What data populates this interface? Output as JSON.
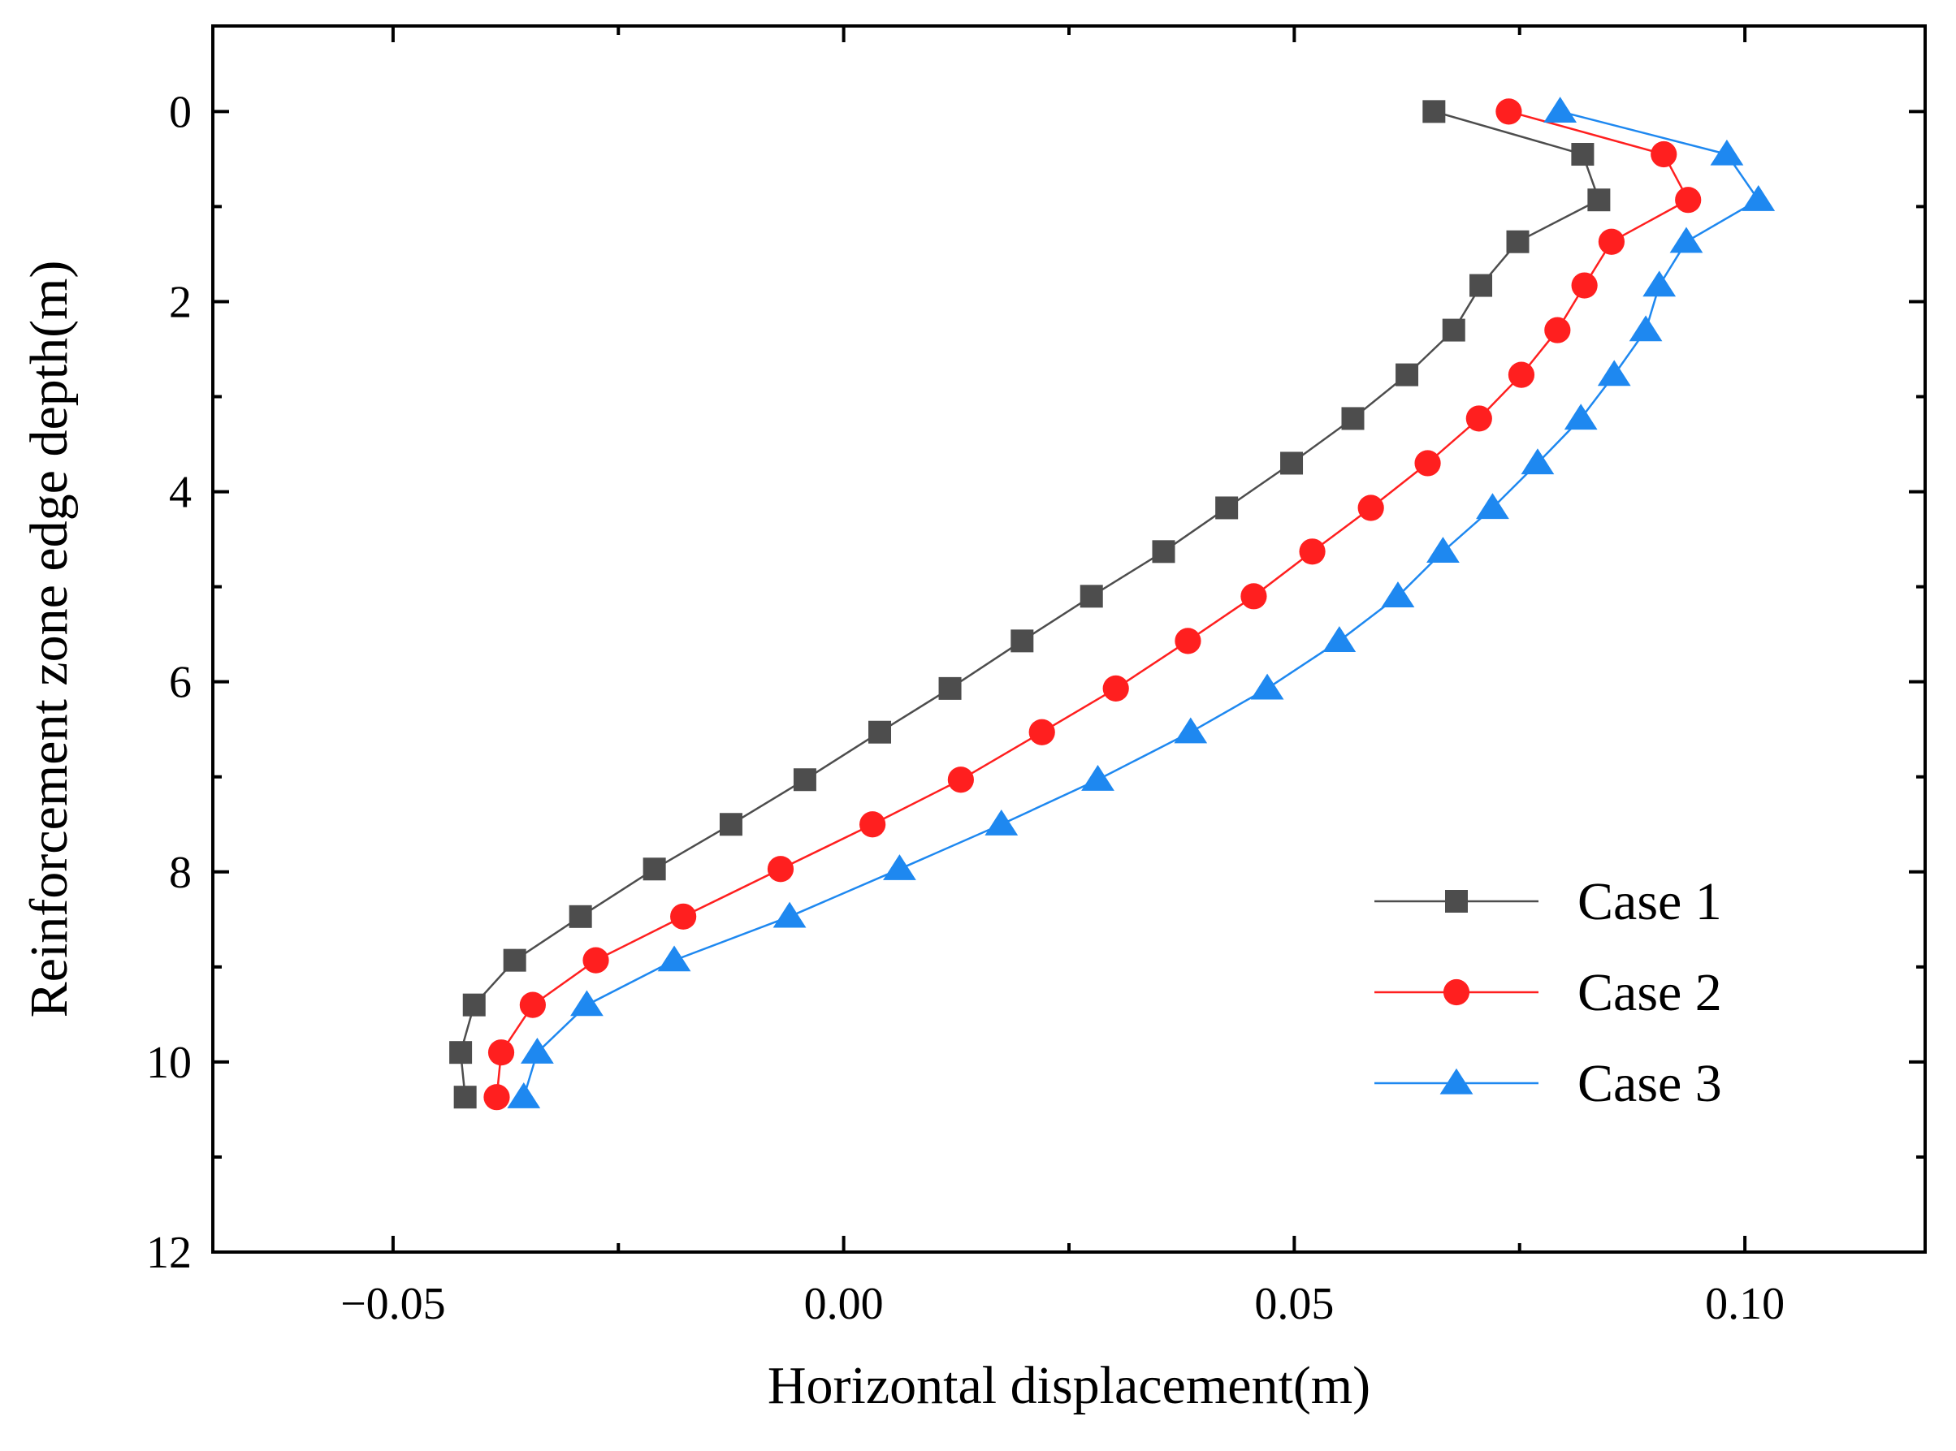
{
  "chart_data": {
    "type": "line",
    "title": "",
    "xlabel": "Horizontal displacement(m)",
    "ylabel": "Reinforcement zone edge depth(m)",
    "xlim": [
      -0.07,
      0.12
    ],
    "ylim": [
      12,
      -0.9
    ],
    "x_ticks": [
      -0.05,
      0.0,
      0.05,
      0.1
    ],
    "x_tick_labels": [
      "−0.05",
      "0.00",
      "0.05",
      "0.10"
    ],
    "y_ticks": [
      0,
      2,
      4,
      6,
      8,
      10,
      12
    ],
    "y_tick_labels": [
      "0",
      "2",
      "4",
      "6",
      "8",
      "10",
      "12"
    ],
    "grid": false,
    "legend_position": "bottom-right",
    "series": [
      {
        "name": "Case 1",
        "color": "#4d4d4d",
        "marker": "square",
        "x": [
          0.0655,
          0.082,
          0.0838,
          0.0748,
          0.0707,
          0.0677,
          0.0625,
          0.0565,
          0.0497,
          0.0425,
          0.0355,
          0.0275,
          0.0198,
          0.0118,
          0.004,
          -0.0043,
          -0.0125,
          -0.021,
          -0.0292,
          -0.0365,
          -0.041,
          -0.0425,
          -0.042
        ],
        "y": [
          0,
          0.45,
          0.93,
          1.37,
          1.83,
          2.3,
          2.77,
          3.23,
          3.7,
          4.17,
          4.63,
          5.1,
          5.57,
          6.07,
          6.53,
          7.03,
          7.5,
          7.97,
          8.47,
          8.93,
          9.4,
          9.9,
          10.37
        ]
      },
      {
        "name": "Case 2",
        "color": "#ff1f1f",
        "marker": "circle",
        "x": [
          0.0738,
          0.091,
          0.0937,
          0.0852,
          0.0822,
          0.0792,
          0.0752,
          0.0705,
          0.0648,
          0.0585,
          0.052,
          0.0455,
          0.0382,
          0.0302,
          0.022,
          0.013,
          0.0032,
          -0.007,
          -0.0178,
          -0.0275,
          -0.0345,
          -0.038,
          -0.0385
        ],
        "y": [
          0,
          0.45,
          0.93,
          1.37,
          1.83,
          2.3,
          2.77,
          3.23,
          3.7,
          4.17,
          4.63,
          5.1,
          5.57,
          6.07,
          6.53,
          7.03,
          7.5,
          7.97,
          8.47,
          8.93,
          9.4,
          9.9,
          10.37
        ]
      },
      {
        "name": "Case 3",
        "color": "#1e88f0",
        "marker": "triangle",
        "x": [
          0.0795,
          0.098,
          0.1015,
          0.0935,
          0.0905,
          0.089,
          0.0855,
          0.0818,
          0.077,
          0.072,
          0.0665,
          0.0615,
          0.055,
          0.047,
          0.0385,
          0.0282,
          0.0175,
          0.0062,
          -0.006,
          -0.0188,
          -0.0285,
          -0.034,
          -0.0355
        ],
        "y": [
          0,
          0.45,
          0.93,
          1.37,
          1.83,
          2.3,
          2.77,
          3.23,
          3.7,
          4.17,
          4.63,
          5.1,
          5.57,
          6.07,
          6.53,
          7.03,
          7.5,
          7.97,
          8.47,
          8.93,
          9.4,
          9.9,
          10.37
        ]
      }
    ]
  }
}
